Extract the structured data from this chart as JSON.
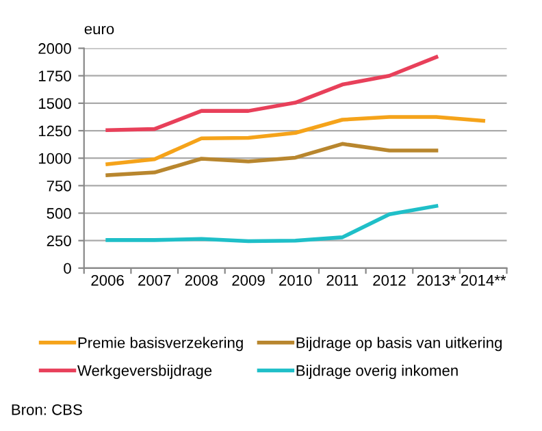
{
  "chart_data": {
    "type": "line",
    "ylabel": "euro",
    "categories": [
      "2006",
      "2007",
      "2008",
      "2009",
      "2010",
      "2011",
      "2012",
      "2013*",
      "2014**"
    ],
    "series": [
      {
        "name": "Premie basisverzekering",
        "color": "#f5a31a",
        "values": [
          945,
          990,
          1180,
          1185,
          1230,
          1350,
          1375,
          1375,
          1340
        ]
      },
      {
        "name": "Werkgeversbijdrage",
        "color": "#e8405a",
        "values": [
          1255,
          1265,
          1430,
          1430,
          1505,
          1670,
          1750,
          1920,
          null
        ]
      },
      {
        "name": "Bijdrage op basis van uitkering",
        "color": "#b8862e",
        "values": [
          845,
          870,
          995,
          970,
          1005,
          1130,
          1070,
          1070,
          null
        ]
      },
      {
        "name": "Bijdrage overig inkomen",
        "color": "#1fbfc8",
        "values": [
          255,
          255,
          265,
          245,
          250,
          280,
          490,
          565,
          null
        ]
      }
    ],
    "ylim": [
      0,
      2000
    ],
    "yticks": [
      0,
      250,
      500,
      750,
      1000,
      1250,
      1500,
      1750,
      2000
    ],
    "grid": "y",
    "legend": "bottom",
    "marker": "none",
    "line_style": "solid",
    "annotations": [
      "Bron: CBS"
    ]
  }
}
